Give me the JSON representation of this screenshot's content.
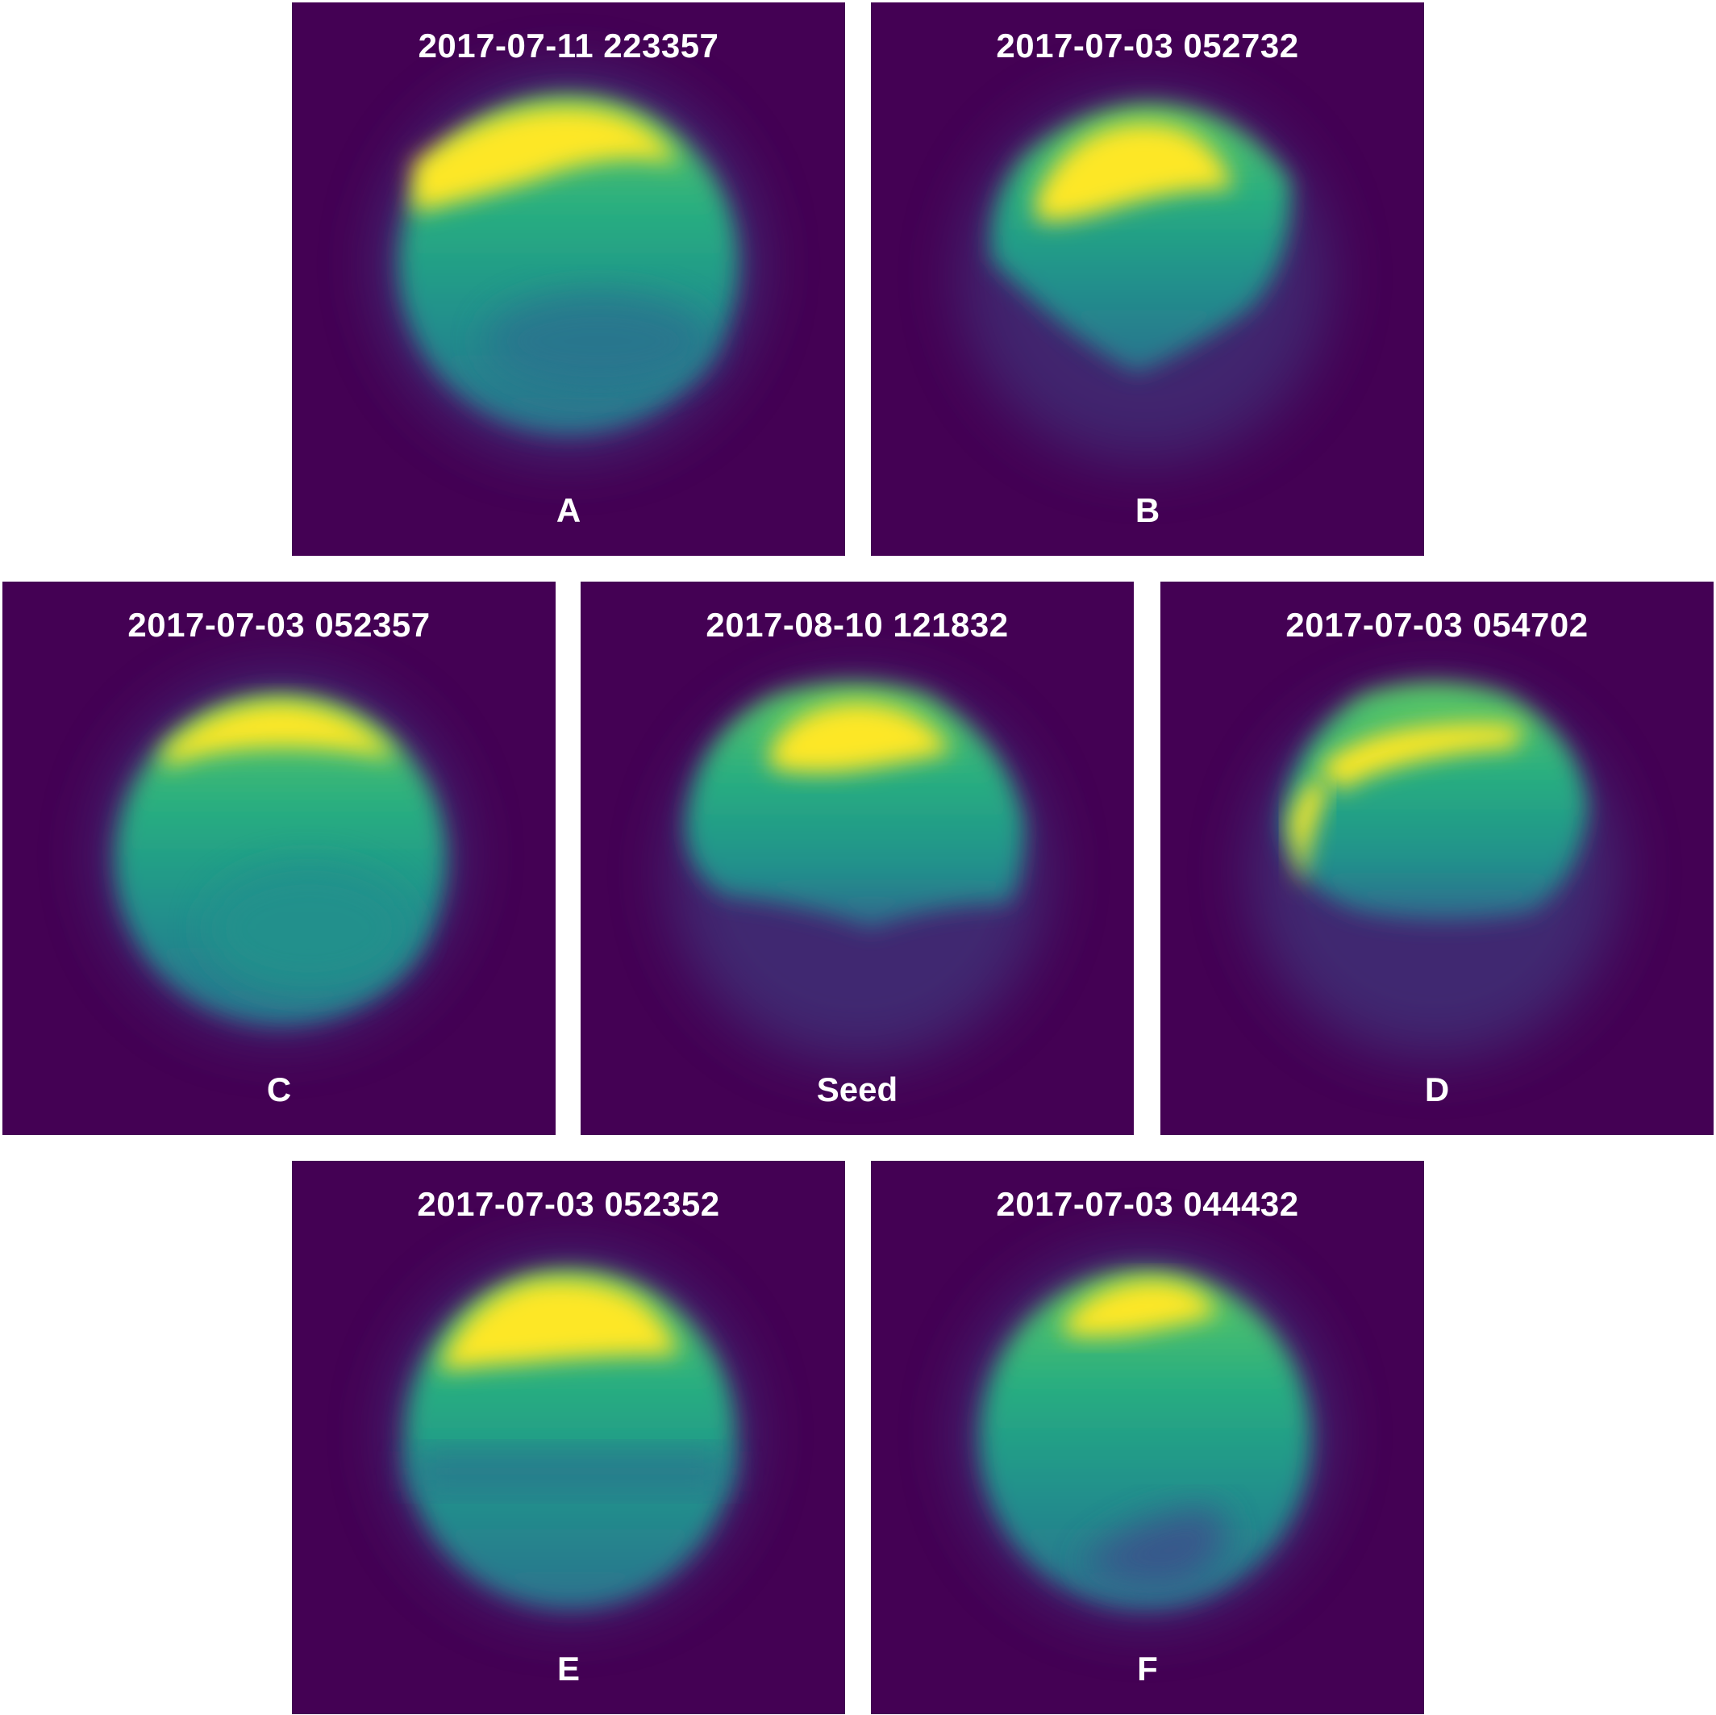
{
  "colors": {
    "background": "#440154",
    "text": "#ffffff",
    "bright": "#fde725",
    "mid": "#21918c",
    "low": "#3b528b"
  },
  "panels": [
    {
      "id": "A",
      "timestamp": "2017-07-11 223357",
      "label": "A"
    },
    {
      "id": "B",
      "timestamp": "2017-07-03 052732",
      "label": "B"
    },
    {
      "id": "C",
      "timestamp": "2017-07-03 052357",
      "label": "C"
    },
    {
      "id": "Seed",
      "timestamp": "2017-08-10 121832",
      "label": "Seed"
    },
    {
      "id": "D",
      "timestamp": "2017-07-03 054702",
      "label": "D"
    },
    {
      "id": "E",
      "timestamp": "2017-07-03 052352",
      "label": "E"
    },
    {
      "id": "F",
      "timestamp": "2017-07-03 044432",
      "label": "F"
    }
  ]
}
